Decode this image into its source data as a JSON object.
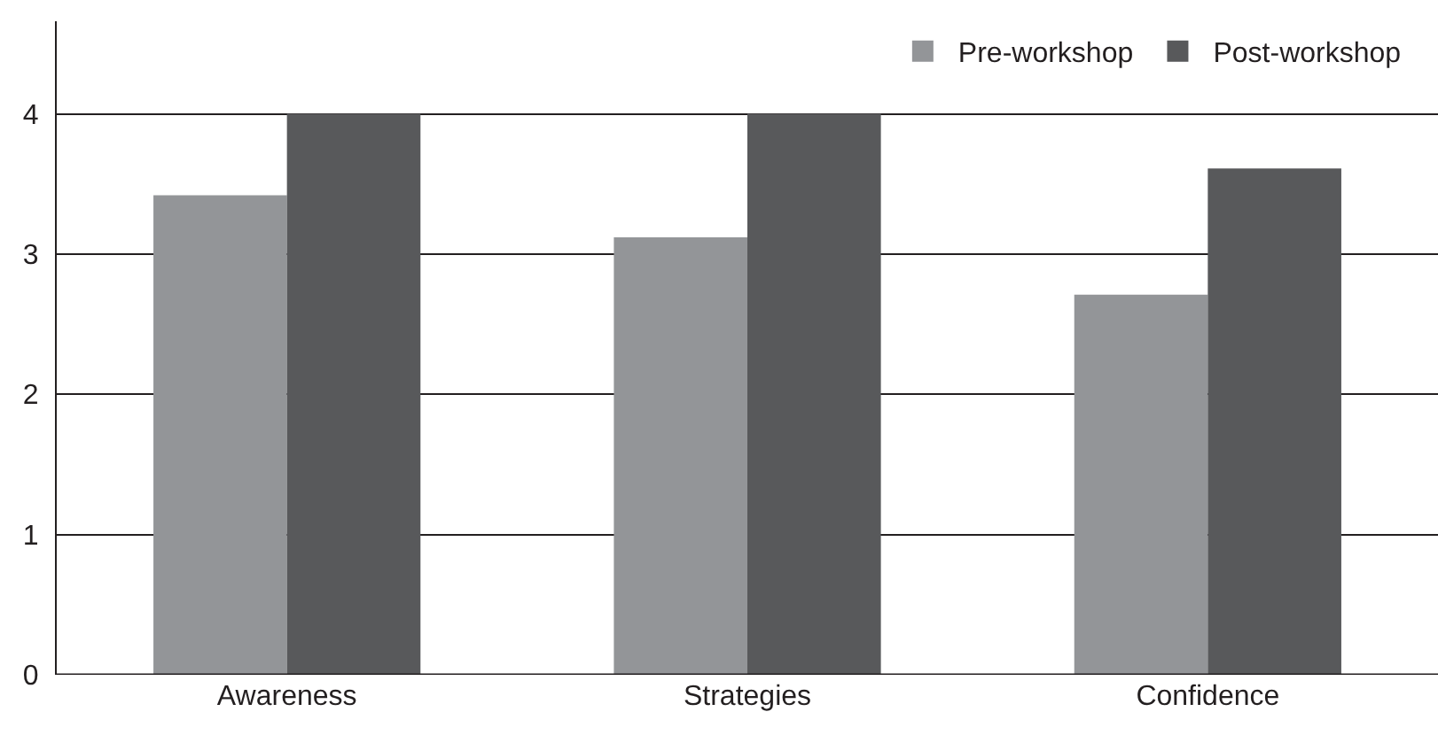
{
  "chart_data": {
    "type": "bar",
    "categories": [
      "Awareness",
      "Strategies",
      "Confidence"
    ],
    "series": [
      {
        "name": "Pre-workshop",
        "color": "#939598",
        "values": [
          3.42,
          3.12,
          2.71
        ]
      },
      {
        "name": "Post-workshop",
        "color": "#58595b",
        "values": [
          4.0,
          4.0,
          3.61
        ]
      }
    ],
    "ylim": [
      0,
      4.66
    ],
    "yticks": [
      0,
      1,
      2,
      3,
      4
    ],
    "grid": "y",
    "legend": "top right"
  }
}
